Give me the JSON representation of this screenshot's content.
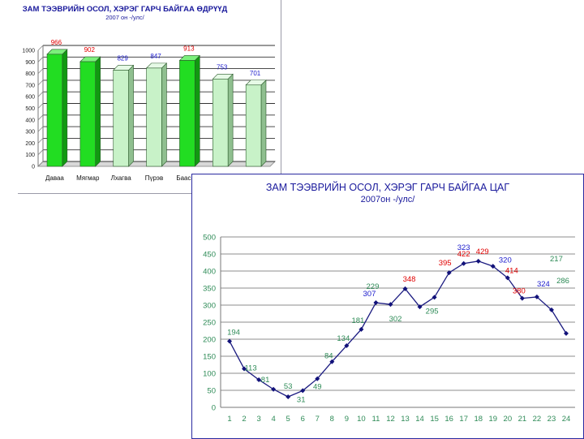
{
  "chart_data": [
    {
      "type": "bar",
      "title": "ЗАМ ТЭЭВРИЙН ОСОЛ, ХЭРЭГ ГАРЧ БАЙГАА ӨДРҮҮД",
      "subtitle": "2007 он -/улс/",
      "categories": [
        "Даваа",
        "Мягмар",
        "Лхагва",
        "Пүрэв",
        "Баасан",
        "",
        ""
      ],
      "values": [
        966,
        902,
        829,
        847,
        913,
        753,
        701
      ],
      "value_labels": [
        "966",
        "902",
        "829",
        "847",
        "913",
        "753",
        "701"
      ],
      "bar_styles": [
        "dark",
        "dark",
        "light",
        "light",
        "dark",
        "light",
        "light"
      ],
      "label_colors": [
        "#e00000",
        "#e00000",
        "#1a1acc",
        "#1a1acc",
        "#e00000",
        "#1a1acc",
        "#1a1acc"
      ],
      "ylim": [
        0,
        1000
      ],
      "yticks": [
        0,
        100,
        200,
        300,
        400,
        500,
        600,
        700,
        800,
        900,
        1000
      ],
      "grid": true,
      "colors": {
        "dark": "#22dd22",
        "light": "#c8f2c8",
        "outline": "#2a5a2a"
      }
    },
    {
      "type": "line",
      "title": "ЗАМ ТЭЭВРИЙН ОСОЛ, ХЭРЭГ ГАРЧ БАЙГАА ЦАГ",
      "subtitle": "2007он -/улс/",
      "x": [
        1,
        2,
        3,
        4,
        5,
        6,
        7,
        8,
        9,
        10,
        11,
        12,
        13,
        14,
        15,
        16,
        17,
        18,
        19,
        20,
        21,
        22,
        23,
        24
      ],
      "values": [
        194,
        113,
        81,
        53,
        31,
        49,
        84,
        134,
        181,
        229,
        307,
        302,
        348,
        295,
        323,
        395,
        422,
        429,
        414,
        380,
        320,
        324,
        286,
        217
      ],
      "point_labels": [
        {
          "x": 1,
          "text": "194",
          "color": "#2e8b57"
        },
        {
          "x": 2,
          "text": "113",
          "color": "#2e8b57"
        },
        {
          "x": 3,
          "text": "81",
          "color": "#2e8b57"
        },
        {
          "x": 5,
          "text": "53",
          "color": "#2e8b57"
        },
        {
          "x": 6,
          "text": "31",
          "color": "#2e8b57"
        },
        {
          "x": 7,
          "text": "49",
          "color": "#2e8b57"
        },
        {
          "x": 8,
          "text": "84",
          "color": "#2e8b57"
        },
        {
          "x": 9,
          "text": "134",
          "color": "#2e8b57"
        },
        {
          "x": 10,
          "text": "181",
          "color": "#2e8b57"
        },
        {
          "x": 11,
          "text": "229",
          "color": "#2e8b57"
        },
        {
          "x": 11,
          "text": "307",
          "color": "#1a1acc"
        },
        {
          "x": 13,
          "text": "302",
          "color": "#2e8b57"
        },
        {
          "x": 13,
          "text": "348",
          "color": "#e00000"
        },
        {
          "x": 15,
          "text": "295",
          "color": "#2e8b57"
        },
        {
          "x": 16,
          "text": "323",
          "color": "#1a1acc"
        },
        {
          "x": 16,
          "text": "395",
          "color": "#e00000"
        },
        {
          "x": 17,
          "text": "422",
          "color": "#e00000"
        },
        {
          "x": 18,
          "text": "429",
          "color": "#e00000"
        },
        {
          "x": 20,
          "text": "414",
          "color": "#e00000"
        },
        {
          "x": 20,
          "text": "320",
          "color": "#1a1acc"
        },
        {
          "x": 21,
          "text": "380",
          "color": "#e00000"
        },
        {
          "x": 22,
          "text": "324",
          "color": "#1a1acc"
        },
        {
          "x": 23,
          "text": "217",
          "color": "#2e8b57"
        },
        {
          "x": 24,
          "text": "286",
          "color": "#2e8b57"
        }
      ],
      "ylim": [
        0,
        500
      ],
      "yticks": [
        0,
        50,
        100,
        150,
        200,
        250,
        300,
        350,
        400,
        450,
        500
      ],
      "grid": true,
      "colors": {
        "line": "#1a1a80",
        "marker": "#12127a",
        "axis_text": "#2e8b57"
      }
    }
  ]
}
